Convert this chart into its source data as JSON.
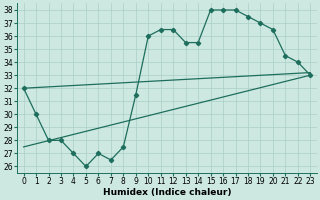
{
  "xlabel": "Humidex (Indice chaleur)",
  "xlim": [
    -0.5,
    23.5
  ],
  "ylim": [
    25.5,
    38.5
  ],
  "xticks": [
    0,
    1,
    2,
    3,
    4,
    5,
    6,
    7,
    8,
    9,
    10,
    11,
    12,
    13,
    14,
    15,
    16,
    17,
    18,
    19,
    20,
    21,
    22,
    23
  ],
  "yticks": [
    26,
    27,
    28,
    29,
    30,
    31,
    32,
    33,
    34,
    35,
    36,
    37,
    38
  ],
  "background_color": "#cce8e0",
  "grid_color": "#aacfc7",
  "line_color": "#1e6e5e",
  "line1_x": [
    0,
    1,
    2,
    3,
    4,
    5,
    6,
    7,
    8,
    9,
    10,
    11,
    12,
    13,
    14,
    15,
    16,
    17,
    18,
    19,
    20,
    21,
    22,
    23
  ],
  "line1_y": [
    32,
    30,
    28,
    28,
    27,
    26,
    27,
    26.5,
    27.5,
    31.5,
    36,
    36.5,
    36.5,
    35.5,
    35.5,
    38,
    38,
    38,
    37.5,
    37,
    36.5,
    34.5,
    34,
    33
  ],
  "line2_x": [
    0,
    23
  ],
  "line2_y": [
    27.5,
    33.0
  ],
  "line3_x": [
    0,
    23
  ],
  "line3_y": [
    32.0,
    33.2
  ],
  "marker_size": 2.2,
  "line_width": 0.9,
  "tick_fontsize": 5.5,
  "label_fontsize": 6.5
}
